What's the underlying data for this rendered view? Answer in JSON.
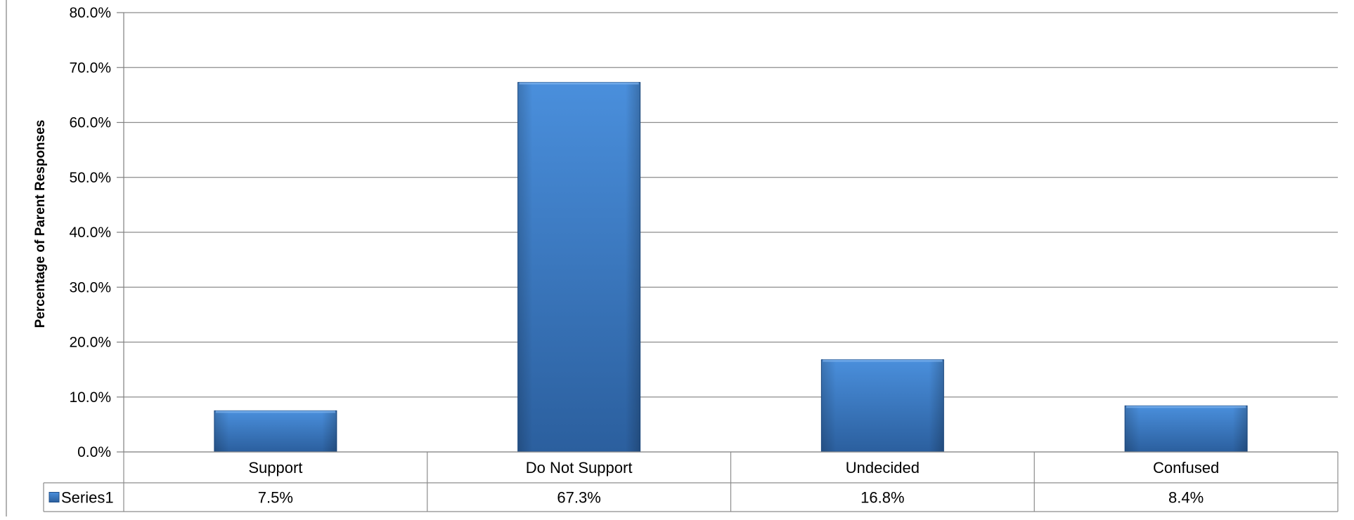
{
  "chart_data": {
    "type": "bar",
    "title": "",
    "xlabel": "",
    "ylabel": "Percentage of Parent Responses",
    "categories": [
      "Support",
      "Do Not Support",
      "Undecided",
      "Confused"
    ],
    "series": [
      {
        "name": "Series1",
        "values": [
          7.5,
          67.3,
          16.8,
          8.4
        ],
        "labels": [
          "7.5%",
          "67.3%",
          "16.8%",
          "8.4%"
        ]
      }
    ],
    "ylim": [
      0,
      80
    ],
    "yticks": [
      "0.0%",
      "10.0%",
      "20.0%",
      "30.0%",
      "40.0%",
      "50.0%",
      "60.0%",
      "70.0%",
      "80.0%"
    ],
    "grid": true,
    "legend": "data-table-left",
    "colors": {
      "bar": "#3a78c2",
      "bar_light": "#4a8fdc",
      "bar_dark": "#2b5f9e",
      "grid": "#8c8c8c",
      "axis": "#7f7f7f"
    }
  }
}
